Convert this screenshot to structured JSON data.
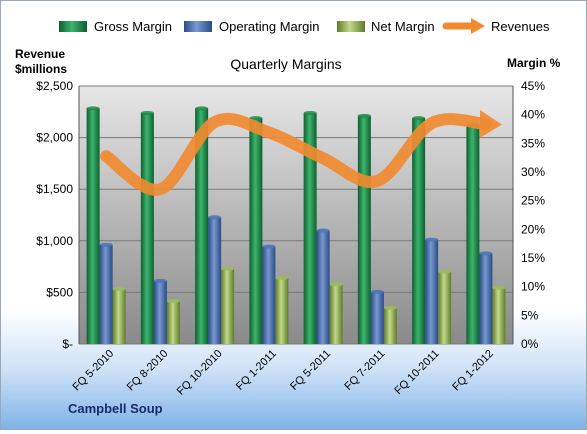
{
  "chart_data": {
    "type": "bar",
    "title": "Quarterly Margins",
    "left_axis_label_line1": "Revenue",
    "left_axis_label_line2": "$millions",
    "right_axis_label": "Margin %",
    "footer_label": "Campbell Soup",
    "categories": [
      "FQ 5-2010",
      "FQ 8-2010",
      "FQ 10-2010",
      "FQ 1-2011",
      "FQ 5-2011",
      "FQ 7-2011",
      "FQ 10-2011",
      "FQ 1-2012"
    ],
    "left_ylim": [
      0,
      2500
    ],
    "left_ticks": [
      0,
      500,
      1000,
      1500,
      2000,
      2500
    ],
    "left_tick_labels": [
      "$-",
      "$500",
      "$1,000",
      "$1,500",
      "$2,000",
      "$2,500"
    ],
    "right_ylim": [
      0,
      45
    ],
    "right_ticks": [
      0,
      5,
      10,
      15,
      20,
      25,
      30,
      35,
      40,
      45
    ],
    "right_tick_labels": [
      "0%",
      "5%",
      "10%",
      "15%",
      "20%",
      "25%",
      "30%",
      "35%",
      "40%",
      "45%"
    ],
    "legend_position": "top",
    "legend": [
      "Gross Margin",
      "Operating Margin",
      "Net Margin",
      "Revenues"
    ],
    "series": [
      {
        "name": "Gross Margin",
        "kind": "bar",
        "axis": "right",
        "color": "#1f8a4c",
        "values": [
          41.1,
          40.3,
          41.1,
          39.4,
          40.3,
          39.8,
          39.4,
          38.3
        ]
      },
      {
        "name": "Operating Margin",
        "kind": "bar",
        "axis": "right",
        "color": "#4a74b8",
        "values": [
          17.3,
          11.0,
          22.1,
          17.0,
          19.8,
          9.1,
          18.2,
          15.8
        ]
      },
      {
        "name": "Net Margin",
        "kind": "bar",
        "axis": "right",
        "color": "#9bbb59",
        "values": [
          9.6,
          7.5,
          13.1,
          11.5,
          10.4,
          6.3,
          12.6,
          9.8
        ]
      },
      {
        "name": "Revenues",
        "kind": "line",
        "axis": "left",
        "color": "#f08a30",
        "values": [
          1820,
          1500,
          2150,
          2050,
          1800,
          1580,
          2140,
          2130
        ]
      }
    ]
  }
}
